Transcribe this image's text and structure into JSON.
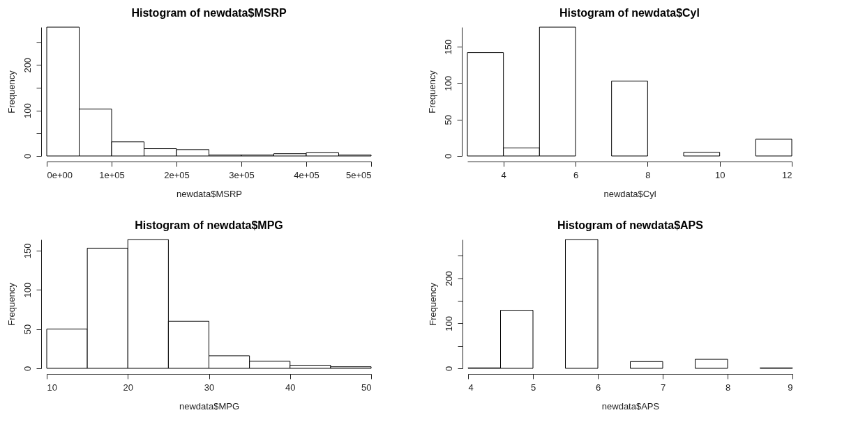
{
  "chart_data": [
    {
      "type": "histogram",
      "title": "Histogram of newdata$MSRP",
      "xlabel": "newdata$MSRP",
      "ylabel": "Frequency",
      "color": "#ffffff",
      "bins": [
        0,
        50000,
        100000,
        150000,
        200000,
        250000,
        300000,
        350000,
        400000,
        450000,
        500000
      ],
      "values": [
        283,
        103,
        31,
        16,
        14,
        2,
        2,
        5,
        7,
        2
      ],
      "xlim": [
        0,
        500000
      ],
      "xticks": [
        {
          "value": 0,
          "label": "0e+00"
        },
        {
          "value": 100000,
          "label": "1e+05"
        },
        {
          "value": 200000,
          "label": "2e+05"
        },
        {
          "value": 300000,
          "label": "3e+05"
        },
        {
          "value": 400000,
          "label": "4e+05"
        },
        {
          "value": 500000,
          "label": "5e+05"
        }
      ],
      "ylim": [
        0,
        283
      ],
      "yticks": [
        0,
        {
          "value": 50,
          "label": null
        },
        100,
        {
          "value": 150,
          "label": null
        },
        200,
        {
          "value": 250,
          "label": null
        }
      ]
    },
    {
      "type": "histogram",
      "title": "Histogram of newdata$Cyl",
      "xlabel": "newdata$Cyl",
      "ylabel": "Frequency",
      "color": "#ffffff",
      "bins": [
        3,
        4,
        5,
        6,
        7,
        8,
        9,
        10,
        11,
        12
      ],
      "values": [
        142,
        11,
        177,
        0,
        103,
        0,
        5,
        0,
        23
      ],
      "xlim": [
        3,
        12
      ],
      "xticks": [
        4,
        6,
        8,
        10,
        12
      ],
      "ylim": [
        0,
        177
      ],
      "yticks": [
        0,
        50,
        100,
        150
      ]
    },
    {
      "type": "histogram",
      "title": "Histogram of newdata$MPG",
      "xlabel": "newdata$MPG",
      "ylabel": "Frequency",
      "color": "#ffffff",
      "bins": [
        10,
        15,
        20,
        25,
        30,
        35,
        40,
        45,
        50
      ],
      "values": [
        50,
        153,
        164,
        60,
        16,
        9,
        4,
        2
      ],
      "xlim": [
        10,
        50
      ],
      "xticks": [
        10,
        20,
        30,
        40,
        50
      ],
      "ylim": [
        0,
        164
      ],
      "yticks": [
        0,
        50,
        100,
        150
      ]
    },
    {
      "type": "histogram",
      "title": "Histogram of newdata$APS",
      "xlabel": "newdata$APS",
      "ylabel": "Frequency",
      "color": "#ffffff",
      "bins": [
        4,
        4.5,
        5,
        5.5,
        6,
        6.5,
        7,
        7.5,
        8,
        8.5,
        9
      ],
      "values": [
        1,
        129,
        0,
        286,
        0,
        15,
        0,
        20,
        0,
        1
      ],
      "xlim": [
        4,
        9
      ],
      "xticks": [
        4,
        5,
        6,
        7,
        8,
        9
      ],
      "ylim": [
        0,
        286
      ],
      "yticks": [
        0,
        {
          "value": 50,
          "label": null
        },
        100,
        {
          "value": 150,
          "label": null
        },
        200,
        {
          "value": 250,
          "label": null
        }
      ]
    }
  ]
}
